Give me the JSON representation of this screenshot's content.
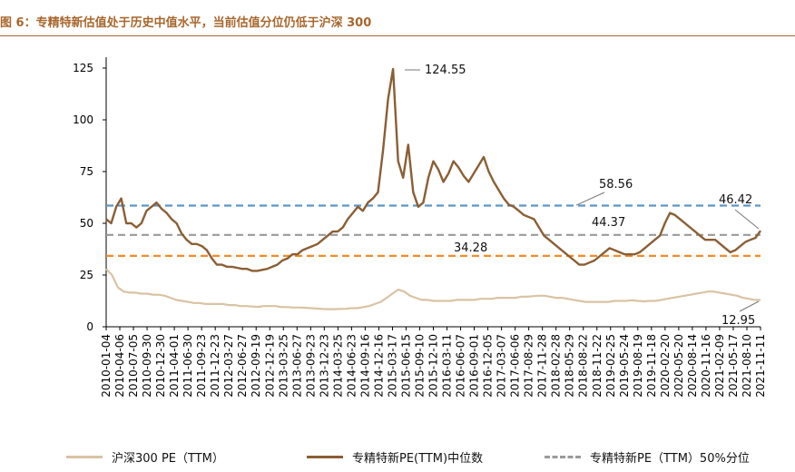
{
  "header": {
    "title": "图 6：专精特新估值处于历史中值水平，当前估值分位仍低于沪深 300"
  },
  "colors": {
    "hs300": "#d9c3a3",
    "median": "#8b5e34",
    "pct50": "#9a9a9a",
    "line_58": "#5b96c8",
    "line_44": "#9a9a9a",
    "line_34": "#f28c28",
    "title": "#a8662c"
  },
  "chart_data": {
    "type": "line",
    "ylim": [
      0,
      125
    ],
    "y_ticks": [
      "0",
      "25",
      "50",
      "75",
      "100",
      "125"
    ],
    "x_ticks": [
      "2010-01-04",
      "2010-04-06",
      "2010-07-05",
      "2010-09-30",
      "2010-12-30",
      "2011-04-01",
      "2011-06-30",
      "2011-09-23",
      "2011-12-23",
      "2012-03-27",
      "2012-06-27",
      "2012-09-19",
      "2012-12-19",
      "2013-03-25",
      "2013-06-27",
      "2013-09-23",
      "2013-12-23",
      "2014-03-25",
      "2014-06-23",
      "2014-09-16",
      "2014-12-16",
      "2015-03-17",
      "2015-06-15",
      "2015-09-10",
      "2015-12-10",
      "2016-03-11",
      "2016-06-07",
      "2016-09-01",
      "2016-12-05",
      "2017-03-07",
      "2017-06-06",
      "2017-08-29",
      "2017-11-28",
      "2018-02-28",
      "2018-05-29",
      "2018-08-22",
      "2018-11-22",
      "2019-02-25",
      "2019-05-24",
      "2019-08-19",
      "2019-11-18",
      "2020-02-20",
      "2020-05-20",
      "2020-08-14",
      "2020-11-16",
      "2021-02-09",
      "2021-05-17",
      "2021-08-10",
      "2021-11-11"
    ],
    "reference_lines": [
      {
        "value": 58.56,
        "label": "58.56"
      },
      {
        "value": 44.37,
        "label": "44.37"
      },
      {
        "value": 34.28,
        "label": "34.28"
      }
    ],
    "annotations": [
      {
        "label": "124.55"
      },
      {
        "label": "46.42"
      },
      {
        "label": "12.95"
      }
    ],
    "series": [
      {
        "name": "沪深300 PE（TTM）",
        "values": [
          28,
          25,
          19,
          17,
          16.5,
          16.5,
          16,
          16,
          15.5,
          15.5,
          15,
          14,
          13,
          12.5,
          12,
          11.5,
          11.5,
          11,
          11,
          11,
          11,
          10.5,
          10.5,
          10,
          10,
          9.8,
          9.6,
          10,
          10,
          10,
          9.5,
          9.5,
          9.3,
          9.3,
          9.2,
          9,
          8.8,
          8.6,
          8.5,
          8.5,
          8.6,
          8.7,
          9,
          9,
          9.5,
          10,
          11,
          12,
          14,
          16,
          18,
          17,
          15,
          14,
          13,
          13,
          12.5,
          12.5,
          12.5,
          12.5,
          13,
          13,
          13,
          13,
          13.5,
          13.5,
          13.5,
          14,
          14,
          14,
          14,
          14.5,
          14.5,
          14.8,
          15,
          15,
          14.5,
          14,
          14,
          13.5,
          13,
          12.5,
          12,
          12,
          12,
          12,
          12,
          12.5,
          12.5,
          12.5,
          12.8,
          12.5,
          12.3,
          12.5,
          12.5,
          13,
          13.5,
          14,
          14.5,
          15,
          15.5,
          16,
          16.5,
          17,
          17,
          16.5,
          16,
          15.5,
          15,
          14,
          13.5,
          13,
          12.95
        ]
      },
      {
        "name": "专精特新PE(TTM)中位数",
        "values": [
          52,
          50,
          58,
          62,
          50,
          50,
          48,
          50,
          56,
          58,
          60,
          57,
          55,
          52,
          50,
          45,
          42,
          40,
          40,
          39,
          37,
          33,
          30,
          30,
          29,
          29,
          28.5,
          28,
          28,
          27,
          27,
          27.5,
          28,
          29,
          30,
          32,
          33,
          35,
          35,
          37,
          38,
          39,
          40,
          42,
          44,
          46,
          46,
          48,
          52,
          55,
          58,
          56,
          60,
          62,
          65,
          85,
          110,
          124.55,
          80,
          72,
          88,
          65,
          58,
          60,
          72,
          80,
          76,
          70,
          74,
          80,
          77,
          73,
          70,
          74,
          78,
          82,
          75,
          70,
          66,
          62,
          59,
          58,
          56,
          54,
          53,
          52,
          48,
          44,
          42,
          40,
          38,
          36,
          34,
          32,
          30,
          30,
          31,
          32,
          34,
          36,
          38,
          37,
          36,
          35,
          35,
          35,
          36,
          38,
          40,
          42,
          44,
          50,
          55,
          54,
          52,
          50,
          48,
          46,
          44,
          42,
          42,
          42,
          40,
          38,
          36,
          37,
          39,
          41,
          42,
          43,
          46.42
        ]
      },
      {
        "name": "专精特新PE（TTM）50%分位",
        "values": [
          44.37,
          44.37
        ]
      }
    ]
  }
}
